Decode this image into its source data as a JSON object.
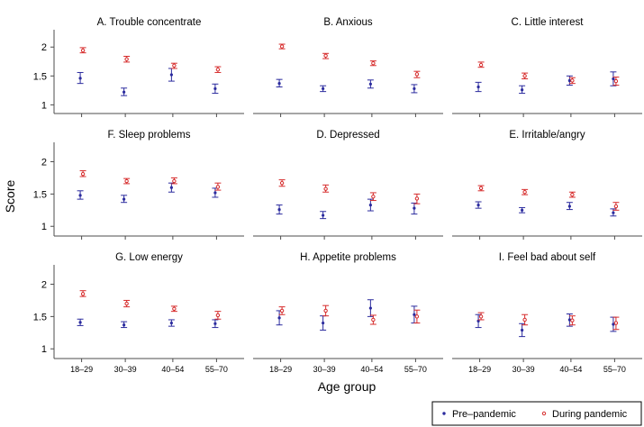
{
  "chart_data": {
    "type": "scatter",
    "subtype": "point-with-error-bars, 3x3 small multiples",
    "xlabel": "Age group",
    "ylabel": "Score",
    "categories": [
      "18–29",
      "30–39",
      "40–54",
      "55–70"
    ],
    "ylim": [
      0.85,
      2.3
    ],
    "yticks": [
      "1",
      "1.5",
      "2"
    ],
    "colors": {
      "pre": "#2b2b9e",
      "during": "#d62b2b",
      "frame": "#4d4d4d"
    },
    "legend": {
      "position": "bottom-right",
      "pre_label": "Pre–pandemic",
      "during_label": "During pandemic"
    },
    "panels": [
      {
        "title": "A. Trouble concentrate",
        "pre": [
          {
            "y": 1.46,
            "lo": 1.37,
            "hi": 1.56
          },
          {
            "y": 1.22,
            "lo": 1.16,
            "hi": 1.29
          },
          {
            "y": 1.52,
            "lo": 1.41,
            "hi": 1.63
          },
          {
            "y": 1.28,
            "lo": 1.2,
            "hi": 1.36
          }
        ],
        "during": [
          {
            "y": 1.94,
            "lo": 1.9,
            "hi": 1.99
          },
          {
            "y": 1.79,
            "lo": 1.74,
            "hi": 1.84
          },
          {
            "y": 1.68,
            "lo": 1.63,
            "hi": 1.72
          },
          {
            "y": 1.61,
            "lo": 1.56,
            "hi": 1.66
          }
        ]
      },
      {
        "title": "B. Anxious",
        "pre": [
          {
            "y": 1.37,
            "lo": 1.31,
            "hi": 1.44
          },
          {
            "y": 1.28,
            "lo": 1.23,
            "hi": 1.33
          },
          {
            "y": 1.36,
            "lo": 1.29,
            "hi": 1.43
          },
          {
            "y": 1.28,
            "lo": 1.21,
            "hi": 1.35
          }
        ],
        "during": [
          {
            "y": 2.01,
            "lo": 1.97,
            "hi": 2.05
          },
          {
            "y": 1.85,
            "lo": 1.8,
            "hi": 1.89
          },
          {
            "y": 1.72,
            "lo": 1.68,
            "hi": 1.76
          },
          {
            "y": 1.53,
            "lo": 1.47,
            "hi": 1.58
          }
        ]
      },
      {
        "title": "C. Little interest",
        "pre": [
          {
            "y": 1.31,
            "lo": 1.23,
            "hi": 1.39
          },
          {
            "y": 1.26,
            "lo": 1.2,
            "hi": 1.33
          },
          {
            "y": 1.42,
            "lo": 1.34,
            "hi": 1.5
          },
          {
            "y": 1.45,
            "lo": 1.33,
            "hi": 1.57
          }
        ],
        "during": [
          {
            "y": 1.69,
            "lo": 1.65,
            "hi": 1.74
          },
          {
            "y": 1.5,
            "lo": 1.45,
            "hi": 1.55
          },
          {
            "y": 1.42,
            "lo": 1.37,
            "hi": 1.47
          },
          {
            "y": 1.41,
            "lo": 1.34,
            "hi": 1.48
          }
        ]
      },
      {
        "title": "F. Sleep problems",
        "pre": [
          {
            "y": 1.48,
            "lo": 1.42,
            "hi": 1.55
          },
          {
            "y": 1.42,
            "lo": 1.37,
            "hi": 1.48
          },
          {
            "y": 1.6,
            "lo": 1.53,
            "hi": 1.67
          },
          {
            "y": 1.52,
            "lo": 1.45,
            "hi": 1.59
          }
        ],
        "during": [
          {
            "y": 1.81,
            "lo": 1.77,
            "hi": 1.86
          },
          {
            "y": 1.7,
            "lo": 1.66,
            "hi": 1.74
          },
          {
            "y": 1.7,
            "lo": 1.66,
            "hi": 1.75
          },
          {
            "y": 1.61,
            "lo": 1.56,
            "hi": 1.67
          }
        ]
      },
      {
        "title": "D. Depressed",
        "pre": [
          {
            "y": 1.26,
            "lo": 1.19,
            "hi": 1.33
          },
          {
            "y": 1.17,
            "lo": 1.12,
            "hi": 1.23
          },
          {
            "y": 1.33,
            "lo": 1.24,
            "hi": 1.42
          },
          {
            "y": 1.28,
            "lo": 1.19,
            "hi": 1.36
          }
        ],
        "during": [
          {
            "y": 1.67,
            "lo": 1.62,
            "hi": 1.72
          },
          {
            "y": 1.58,
            "lo": 1.53,
            "hi": 1.64
          },
          {
            "y": 1.46,
            "lo": 1.4,
            "hi": 1.52
          },
          {
            "y": 1.43,
            "lo": 1.35,
            "hi": 1.5
          }
        ]
      },
      {
        "title": "E. Irritable/angry",
        "pre": [
          {
            "y": 1.33,
            "lo": 1.28,
            "hi": 1.38
          },
          {
            "y": 1.25,
            "lo": 1.21,
            "hi": 1.29
          },
          {
            "y": 1.31,
            "lo": 1.26,
            "hi": 1.37
          },
          {
            "y": 1.21,
            "lo": 1.16,
            "hi": 1.27
          }
        ],
        "during": [
          {
            "y": 1.59,
            "lo": 1.55,
            "hi": 1.63
          },
          {
            "y": 1.53,
            "lo": 1.49,
            "hi": 1.57
          },
          {
            "y": 1.49,
            "lo": 1.45,
            "hi": 1.53
          },
          {
            "y": 1.31,
            "lo": 1.25,
            "hi": 1.37
          }
        ]
      },
      {
        "title": "G. Low energy",
        "pre": [
          {
            "y": 1.41,
            "lo": 1.36,
            "hi": 1.46
          },
          {
            "y": 1.37,
            "lo": 1.33,
            "hi": 1.42
          },
          {
            "y": 1.4,
            "lo": 1.35,
            "hi": 1.45
          },
          {
            "y": 1.39,
            "lo": 1.33,
            "hi": 1.45
          }
        ],
        "during": [
          {
            "y": 1.85,
            "lo": 1.81,
            "hi": 1.9
          },
          {
            "y": 1.7,
            "lo": 1.65,
            "hi": 1.75
          },
          {
            "y": 1.62,
            "lo": 1.58,
            "hi": 1.66
          },
          {
            "y": 1.52,
            "lo": 1.46,
            "hi": 1.58
          }
        ]
      },
      {
        "title": "H. Appetite problems",
        "pre": [
          {
            "y": 1.48,
            "lo": 1.37,
            "hi": 1.59
          },
          {
            "y": 1.4,
            "lo": 1.29,
            "hi": 1.51
          },
          {
            "y": 1.63,
            "lo": 1.5,
            "hi": 1.76
          },
          {
            "y": 1.53,
            "lo": 1.4,
            "hi": 1.66
          }
        ],
        "during": [
          {
            "y": 1.59,
            "lo": 1.53,
            "hi": 1.65
          },
          {
            "y": 1.59,
            "lo": 1.51,
            "hi": 1.67
          },
          {
            "y": 1.45,
            "lo": 1.38,
            "hi": 1.52
          },
          {
            "y": 1.5,
            "lo": 1.4,
            "hi": 1.6
          }
        ]
      },
      {
        "title": "I. Feel bad about self",
        "pre": [
          {
            "y": 1.43,
            "lo": 1.33,
            "hi": 1.53
          },
          {
            "y": 1.29,
            "lo": 1.19,
            "hi": 1.39
          },
          {
            "y": 1.45,
            "lo": 1.35,
            "hi": 1.54
          },
          {
            "y": 1.38,
            "lo": 1.27,
            "hi": 1.49
          }
        ],
        "during": [
          {
            "y": 1.5,
            "lo": 1.45,
            "hi": 1.56
          },
          {
            "y": 1.45,
            "lo": 1.37,
            "hi": 1.53
          },
          {
            "y": 1.44,
            "lo": 1.37,
            "hi": 1.51
          },
          {
            "y": 1.4,
            "lo": 1.3,
            "hi": 1.49
          }
        ]
      }
    ]
  }
}
